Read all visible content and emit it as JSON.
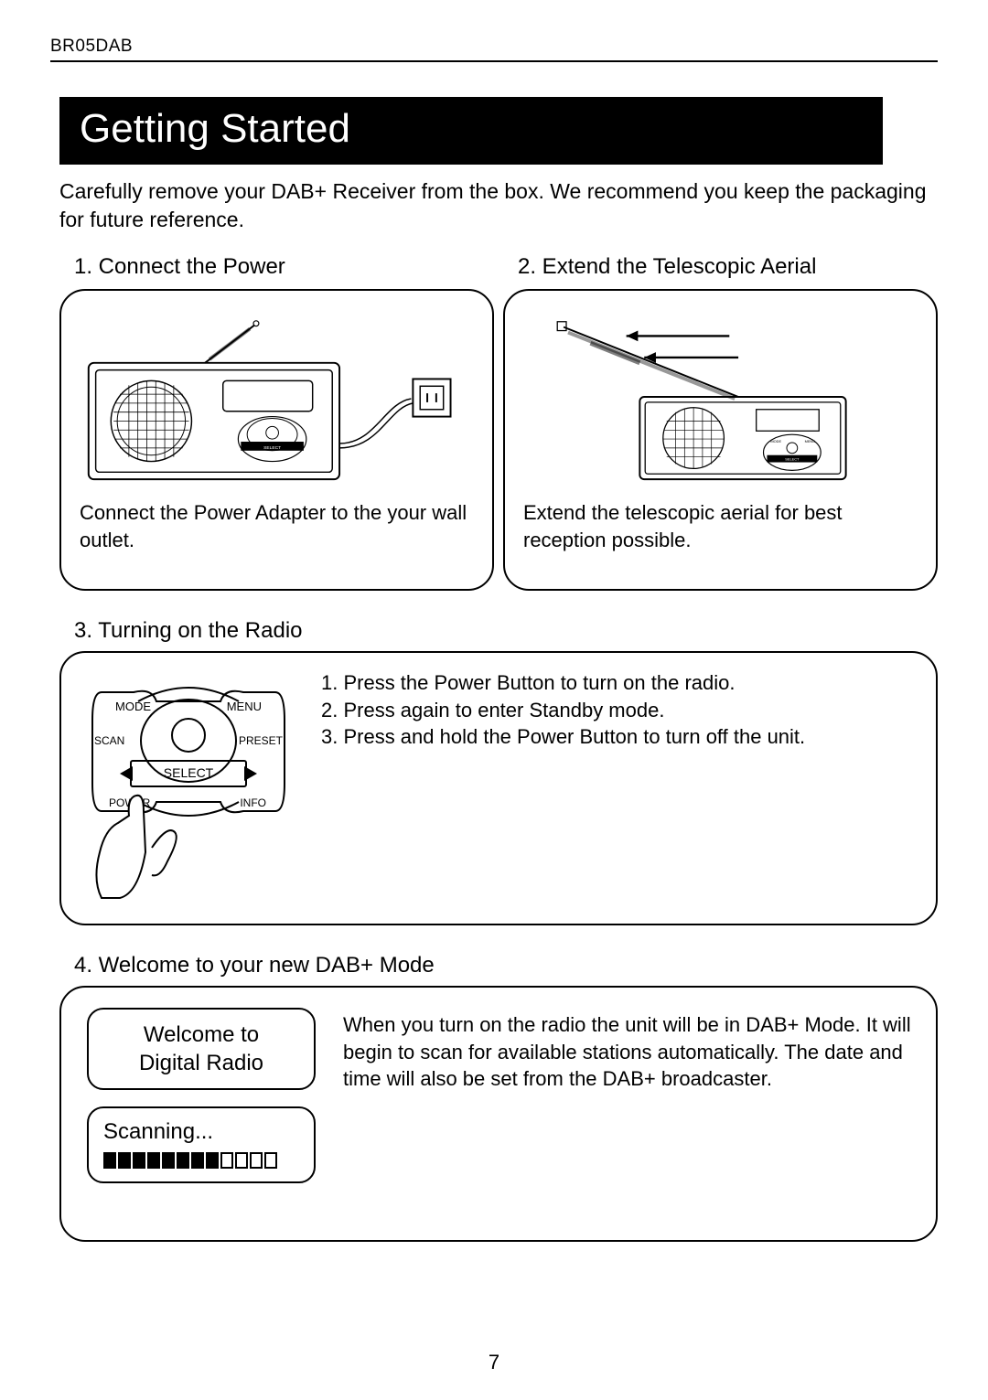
{
  "page": {
    "model": "BR05DAB",
    "section_title": "Getting Started",
    "intro": "Carefully remove your DAB+ Receiver from the box. We recommend you keep the packaging for future reference.",
    "page_number": "7"
  },
  "step1": {
    "heading": "1. Connect the Power",
    "caption": "Connect the Power Adapter to the your wall outlet."
  },
  "step2": {
    "heading": "2. Extend the Telescopic Aerial",
    "caption": "Extend the telescopic aerial for best reception possible."
  },
  "step3": {
    "heading": "3. Turning on the Radio",
    "line1": "1. Press the Power Button to turn on the radio.",
    "line2": "2. Press again to enter Standby mode.",
    "line3": "3. Press and hold the Power Button to turn off the unit.",
    "labels": {
      "mode": "MODE",
      "menu": "MENU",
      "scan": "SCAN",
      "preset": "PRESET",
      "select": "SELECT",
      "power": "POWER",
      "info": "INFO"
    }
  },
  "step4": {
    "heading": "4. Welcome to your new DAB+ Mode",
    "lcd1_line1": "Welcome to",
    "lcd1_line2": "Digital Radio",
    "lcd2_line1": "Scanning...",
    "progress_filled": 8,
    "progress_total": 12,
    "text": "When you turn on the radio the unit will be in DAB+ Mode. It will begin to scan for available stations automatically. The date and time will also be set from the DAB+ broadcaster."
  },
  "colors": {
    "text": "#000000",
    "bg": "#ffffff",
    "title_bg": "#000000",
    "title_fg": "#ffffff"
  }
}
